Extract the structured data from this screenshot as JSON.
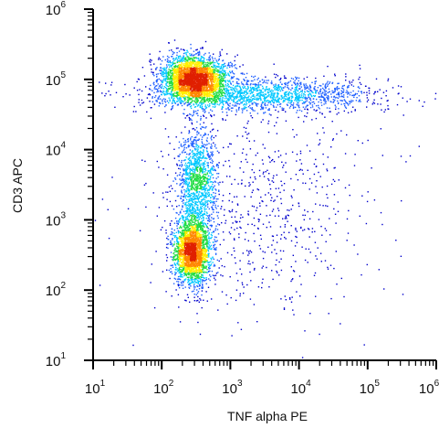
{
  "chart_data": {
    "type": "scatter",
    "title": "",
    "xlabel": "TNF alpha PE",
    "ylabel": "CD3 APC",
    "x_scale": "log",
    "y_scale": "log",
    "xlim": [
      10,
      1000000
    ],
    "ylim": [
      10,
      1000000
    ],
    "x_ticks": [
      {
        "base": "10",
        "exp": "1"
      },
      {
        "base": "10",
        "exp": "2"
      },
      {
        "base": "10",
        "exp": "3"
      },
      {
        "base": "10",
        "exp": "4"
      },
      {
        "base": "10",
        "exp": "5"
      },
      {
        "base": "10",
        "exp": "6"
      }
    ],
    "y_ticks": [
      {
        "base": "10",
        "exp": "1"
      },
      {
        "base": "10",
        "exp": "2"
      },
      {
        "base": "10",
        "exp": "3"
      },
      {
        "base": "10",
        "exp": "4"
      },
      {
        "base": "10",
        "exp": "5"
      },
      {
        "base": "10",
        "exp": "6"
      }
    ],
    "grid": false,
    "legend": "none",
    "density_colors": [
      "#0000cc",
      "#1f5fff",
      "#00c8ff",
      "#22dd44",
      "#ffee00",
      "#ff8800",
      "#e02000"
    ],
    "populations": [
      {
        "center_x": 300,
        "center_y": 100000,
        "spread_x_decades": 0.24,
        "spread_y_decades": 0.16,
        "share": 0.34
      },
      {
        "center_x": 3000,
        "center_y": 60000,
        "spread_x_decades": 0.85,
        "spread_y_decades": 0.12,
        "share": 0.18
      },
      {
        "center_x": 280,
        "center_y": 350,
        "spread_x_decades": 0.13,
        "spread_y_decades": 0.24,
        "share": 0.26
      },
      {
        "center_x": 330,
        "center_y": 3500,
        "spread_x_decades": 0.14,
        "spread_y_decades": 0.4,
        "share": 0.14
      },
      {
        "center_x": 3000,
        "center_y": 1500,
        "spread_x_decades": 0.85,
        "spread_y_decades": 0.8,
        "share": 0.08
      }
    ]
  }
}
